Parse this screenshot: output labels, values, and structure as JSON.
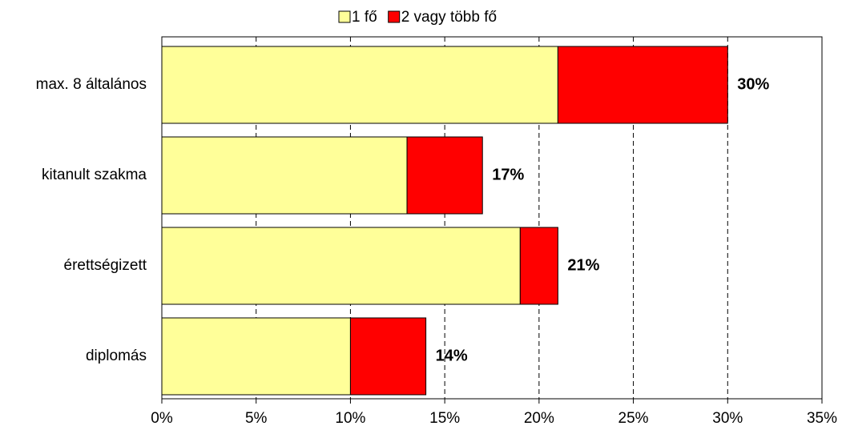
{
  "chart_data": {
    "type": "stacked-barh",
    "categories": [
      "max. 8 általános",
      "kitanult szakma",
      "érettségizett",
      "diplomás"
    ],
    "series": [
      {
        "name": "1 fő",
        "color": "#ffff99",
        "values": [
          21,
          13,
          19,
          10
        ]
      },
      {
        "name": "2 vagy több fő",
        "color": "#ff0000",
        "values": [
          9,
          4,
          2,
          4
        ]
      }
    ],
    "total_labels": [
      "30%",
      "17%",
      "21%",
      "14%"
    ],
    "xlim": [
      0,
      35
    ],
    "xticks": [
      {
        "value": 0,
        "label": "0%"
      },
      {
        "value": 5,
        "label": "5%"
      },
      {
        "value": 10,
        "label": "10%"
      },
      {
        "value": 15,
        "label": "15%"
      },
      {
        "value": 20,
        "label": "20%"
      },
      {
        "value": 25,
        "label": "25%"
      },
      {
        "value": 30,
        "label": "30%"
      },
      {
        "value": 35,
        "label": "35%"
      }
    ],
    "grid": true,
    "legend": "top"
  }
}
